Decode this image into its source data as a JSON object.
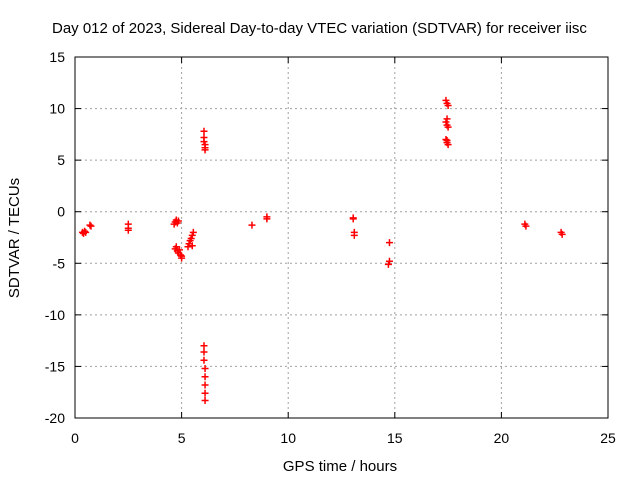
{
  "chart_data": {
    "type": "scatter",
    "title": "Day 012 of 2023, Sidereal Day-to-day VTEC variation (SDTVAR) for receiver iisc",
    "xlabel": "GPS time / hours",
    "ylabel": "SDTVAR / TECUs",
    "xlim": [
      0,
      25
    ],
    "ylim": [
      -20,
      15
    ],
    "xticks": [
      0,
      5,
      10,
      15,
      20,
      25
    ],
    "yticks": [
      -20,
      -15,
      -10,
      -5,
      0,
      5,
      10,
      15
    ],
    "grid": true,
    "marker": "plus",
    "color": "#ff0000",
    "series": [
      {
        "name": "SDTVAR",
        "x": [
          0.35,
          0.4,
          0.45,
          0.5,
          0.7,
          0.75,
          2.5,
          2.5,
          2.5,
          4.65,
          4.7,
          4.75,
          4.8,
          4.85,
          4.7,
          4.75,
          4.8,
          4.85,
          4.9,
          4.95,
          5.0,
          5.0,
          5.3,
          5.35,
          5.4,
          5.45,
          5.5,
          5.55,
          5.5,
          6.05,
          6.05,
          6.05,
          6.1,
          6.1,
          6.1,
          6.05,
          6.05,
          6.05,
          6.1,
          6.1,
          6.1,
          6.1,
          6.1,
          8.3,
          9.0,
          9.0,
          13.05,
          13.05,
          13.1,
          13.1,
          14.75,
          14.75,
          14.7,
          17.4,
          17.45,
          17.5,
          17.45,
          17.4,
          17.45,
          17.5,
          17.4,
          17.45,
          17.5,
          17.45,
          21.1,
          21.15,
          22.8,
          22.85
        ],
        "y": [
          -2.0,
          -2.1,
          -1.9,
          -2.0,
          -1.3,
          -1.4,
          -1.2,
          -1.6,
          -1.8,
          -1.2,
          -1.0,
          -0.8,
          -1.1,
          -0.9,
          -3.6,
          -3.4,
          -3.8,
          -4.0,
          -3.7,
          -4.2,
          -4.5,
          -4.3,
          -3.4,
          -3.1,
          -2.8,
          -2.6,
          -2.3,
          -2.0,
          -3.3,
          7.8,
          7.2,
          6.8,
          6.5,
          6.2,
          6.0,
          -13.0,
          -13.6,
          -14.4,
          -15.2,
          -16.0,
          -16.8,
          -17.6,
          -18.3,
          -1.3,
          -0.5,
          -0.7,
          -0.6,
          -0.7,
          -2.0,
          -2.3,
          -3.0,
          -4.8,
          -5.1,
          10.8,
          10.5,
          10.3,
          9.0,
          8.7,
          8.4,
          8.2,
          7.0,
          6.7,
          6.5,
          6.9,
          -1.2,
          -1.4,
          -2.0,
          -2.2
        ]
      }
    ]
  }
}
